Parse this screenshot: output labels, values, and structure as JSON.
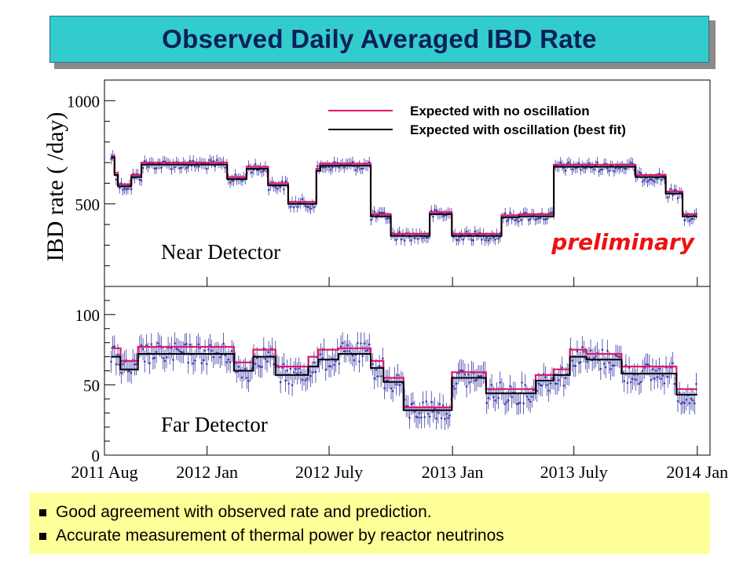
{
  "title": "Observed Daily Averaged IBD Rate",
  "notes": [
    "Good agreement with observed rate and prediction.",
    "Accurate measurement of thermal power by reactor neutrinos"
  ],
  "colors": {
    "title_bg": "#33cccc",
    "title_text": "#0a1f5c",
    "no_osc": "#e0186c",
    "osc": "#000000",
    "data_points": "#3a3aa8",
    "preliminary": "#ee1111",
    "note_bg": "#ffff99"
  },
  "chart_data": [
    {
      "type": "line",
      "panel": "Near Detector",
      "ylabel": "IBD rate ( /day)",
      "annotation": "preliminary",
      "ylim": [
        100,
        1100
      ],
      "yticks": [
        500,
        1000
      ],
      "xlim": [
        "2011-08-01",
        "2014-01-20"
      ],
      "xtick_labels": [
        "2011 Aug",
        "2012 Jan",
        "2012 July",
        "2013 Jan",
        "2013 July",
        "2014 Jan"
      ],
      "xtick_dates": [
        "2011-08-01",
        "2012-01-01",
        "2012-07-01",
        "2013-01-01",
        "2013-07-01",
        "2014-01-01"
      ],
      "legend": {
        "placement": "top-right",
        "entries": [
          "Expected with no oscillation",
          "Expected with oscillation (best fit)"
        ]
      },
      "series": [
        {
          "name": "Expected with no oscillation",
          "segments": [
            [
              "2011-08-11",
              "2011-08-16",
              730
            ],
            [
              "2011-08-16",
              "2011-08-21",
              650
            ],
            [
              "2011-08-21",
              "2011-09-10",
              595
            ],
            [
              "2011-09-10",
              "2011-09-25",
              640
            ],
            [
              "2011-09-25",
              "2012-01-31",
              700
            ],
            [
              "2012-01-31",
              "2012-02-29",
              630
            ],
            [
              "2012-02-29",
              "2012-04-01",
              680
            ],
            [
              "2012-04-01",
              "2012-05-01",
              600
            ],
            [
              "2012-05-01",
              "2012-06-12",
              510
            ],
            [
              "2012-06-12",
              "2012-06-18",
              670
            ],
            [
              "2012-06-18",
              "2012-09-01",
              695
            ],
            [
              "2012-09-01",
              "2012-10-01",
              450
            ],
            [
              "2012-10-01",
              "2012-11-28",
              355
            ],
            [
              "2012-11-28",
              "2012-12-31",
              460
            ],
            [
              "2012-12-31",
              "2013-03-15",
              355
            ],
            [
              "2013-03-15",
              "2013-04-10",
              445
            ],
            [
              "2013-04-10",
              "2013-06-01",
              450
            ],
            [
              "2013-06-01",
              "2013-10-01",
              690
            ],
            [
              "2013-10-01",
              "2013-11-15",
              640
            ],
            [
              "2013-11-15",
              "2013-12-10",
              560
            ],
            [
              "2013-12-10",
              "2014-01-01",
              450
            ]
          ]
        },
        {
          "name": "Expected with oscillation (best fit)",
          "segments": [
            [
              "2011-08-11",
              "2011-08-16",
              725
            ],
            [
              "2011-08-16",
              "2011-08-21",
              640
            ],
            [
              "2011-08-21",
              "2011-09-10",
              585
            ],
            [
              "2011-09-10",
              "2011-09-25",
              630
            ],
            [
              "2011-09-25",
              "2012-01-31",
              690
            ],
            [
              "2012-01-31",
              "2012-02-29",
              620
            ],
            [
              "2012-02-29",
              "2012-04-01",
              670
            ],
            [
              "2012-04-01",
              "2012-05-01",
              590
            ],
            [
              "2012-05-01",
              "2012-06-12",
              500
            ],
            [
              "2012-06-12",
              "2012-06-18",
              660
            ],
            [
              "2012-06-18",
              "2012-09-01",
              685
            ],
            [
              "2012-09-01",
              "2012-10-01",
              440
            ],
            [
              "2012-10-01",
              "2012-11-28",
              345
            ],
            [
              "2012-11-28",
              "2012-12-31",
              450
            ],
            [
              "2012-12-31",
              "2013-03-15",
              345
            ],
            [
              "2013-03-15",
              "2013-04-10",
              435
            ],
            [
              "2013-04-10",
              "2013-06-01",
              440
            ],
            [
              "2013-06-01",
              "2013-10-01",
              680
            ],
            [
              "2013-10-01",
              "2013-11-15",
              630
            ],
            [
              "2013-11-15",
              "2013-12-10",
              550
            ],
            [
              "2013-12-10",
              "2014-01-01",
              440
            ]
          ]
        }
      ]
    },
    {
      "type": "line",
      "panel": "Far Detector",
      "ylim": [
        0,
        120
      ],
      "yticks": [
        0,
        50,
        100
      ],
      "xlim": [
        "2011-08-01",
        "2014-01-20"
      ],
      "xtick_labels": [
        "2011 Aug",
        "2012 Jan",
        "2012 July",
        "2013 Jan",
        "2013 July",
        "2014 Jan"
      ],
      "xtick_dates": [
        "2011-08-01",
        "2012-01-01",
        "2012-07-01",
        "2013-01-01",
        "2013-07-01",
        "2014-01-01"
      ],
      "series": [
        {
          "name": "Expected with no oscillation",
          "segments": [
            [
              "2011-08-11",
              "2011-08-25",
              76
            ],
            [
              "2011-08-25",
              "2011-09-20",
              67
            ],
            [
              "2011-09-20",
              "2012-02-10",
              77
            ],
            [
              "2012-02-10",
              "2012-03-10",
              66
            ],
            [
              "2012-03-10",
              "2012-04-12",
              75
            ],
            [
              "2012-04-12",
              "2012-05-31",
              63
            ],
            [
              "2012-05-31",
              "2012-06-15",
              70
            ],
            [
              "2012-06-15",
              "2012-07-15",
              75
            ],
            [
              "2012-07-15",
              "2012-09-01",
              76
            ],
            [
              "2012-09-01",
              "2012-09-20",
              67
            ],
            [
              "2012-09-20",
              "2012-10-20",
              55
            ],
            [
              "2012-10-20",
              "2012-12-31",
              34
            ],
            [
              "2012-12-31",
              "2013-02-20",
              59
            ],
            [
              "2013-02-20",
              "2013-05-05",
              47
            ],
            [
              "2013-05-05",
              "2013-06-01",
              57
            ],
            [
              "2013-06-01",
              "2013-06-25",
              61
            ],
            [
              "2013-06-25",
              "2013-07-20",
              75
            ],
            [
              "2013-07-20",
              "2013-09-10",
              72
            ],
            [
              "2013-09-10",
              "2013-12-01",
              63
            ],
            [
              "2013-12-01",
              "2014-01-01",
              47
            ]
          ]
        },
        {
          "name": "Expected with oscillation (best fit)",
          "segments": [
            [
              "2011-08-11",
              "2011-08-25",
              70
            ],
            [
              "2011-08-25",
              "2011-09-20",
              61
            ],
            [
              "2011-09-20",
              "2012-02-10",
              72
            ],
            [
              "2012-02-10",
              "2012-03-10",
              60
            ],
            [
              "2012-03-10",
              "2012-04-12",
              70
            ],
            [
              "2012-04-12",
              "2012-05-31",
              57
            ],
            [
              "2012-05-31",
              "2012-06-15",
              63
            ],
            [
              "2012-06-15",
              "2012-07-15",
              68
            ],
            [
              "2012-07-15",
              "2012-09-01",
              72
            ],
            [
              "2012-09-01",
              "2012-09-20",
              62
            ],
            [
              "2012-09-20",
              "2012-10-20",
              52
            ],
            [
              "2012-10-20",
              "2012-12-31",
              32
            ],
            [
              "2012-12-31",
              "2013-02-20",
              55
            ],
            [
              "2013-02-20",
              "2013-05-05",
              44
            ],
            [
              "2013-05-05",
              "2013-06-01",
              53
            ],
            [
              "2013-06-01",
              "2013-06-25",
              57
            ],
            [
              "2013-06-25",
              "2013-07-20",
              70
            ],
            [
              "2013-07-20",
              "2013-09-10",
              68
            ],
            [
              "2013-09-10",
              "2013-12-01",
              58
            ],
            [
              "2013-12-01",
              "2014-01-01",
              43
            ]
          ]
        }
      ]
    }
  ]
}
